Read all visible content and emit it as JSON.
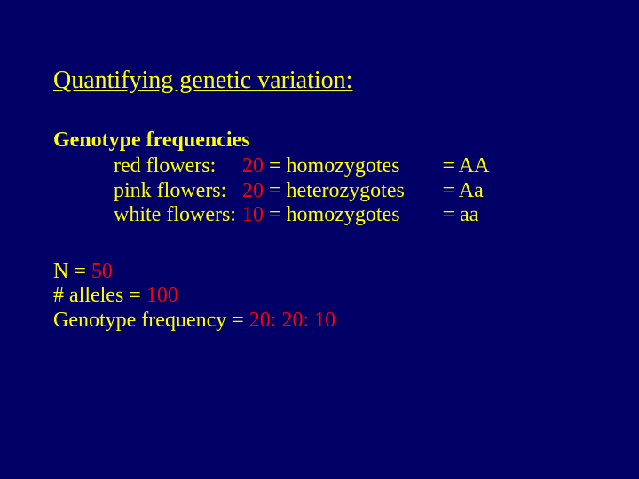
{
  "title": "Quantifying genetic variation:",
  "section_header": "Genotype frequencies",
  "flowers": [
    {
      "label": "red flowers:",
      "count": "20",
      "eq": " = ",
      "zygote": "homozygotes",
      "eq2": " = ",
      "genotype": "AA"
    },
    {
      "label": "pink flowers:",
      "count": "20",
      "eq": " = ",
      "zygote": "heterozygotes",
      "eq2": " = ",
      "genotype": "Aa"
    },
    {
      "label": "white flowers:",
      "count": "10",
      "eq": " = ",
      "zygote": "homozygotes",
      "eq2": " = ",
      "genotype": "aa"
    }
  ],
  "n_label": "N = ",
  "n_value": "50",
  "alleles_label": "# alleles = ",
  "alleles_value": "100",
  "freq_label": "Genotype frequency = ",
  "freq_value": "20: 20: 10",
  "colors": {
    "background": "#000066",
    "text": "#ffff00",
    "highlight": "#ff0000"
  }
}
